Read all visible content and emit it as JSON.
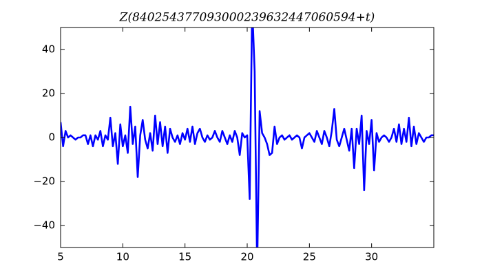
{
  "chart_data": {
    "type": "line",
    "title": "Z(840254377093000239632447060594+t)",
    "x": [
      5.0,
      5.2,
      5.4,
      5.6,
      5.8,
      6.0,
      6.2,
      6.4,
      6.6,
      6.8,
      7.0,
      7.2,
      7.4,
      7.6,
      7.8,
      8.0,
      8.2,
      8.4,
      8.6,
      8.8,
      9.0,
      9.2,
      9.4,
      9.6,
      9.8,
      10.0,
      10.2,
      10.4,
      10.6,
      10.8,
      11.0,
      11.2,
      11.4,
      11.6,
      11.8,
      12.0,
      12.2,
      12.4,
      12.6,
      12.8,
      13.0,
      13.2,
      13.4,
      13.6,
      13.8,
      14.0,
      14.2,
      14.4,
      14.6,
      14.8,
      15.0,
      15.2,
      15.4,
      15.6,
      15.8,
      16.0,
      16.2,
      16.4,
      16.6,
      16.8,
      17.0,
      17.2,
      17.4,
      17.6,
      17.8,
      18.0,
      18.2,
      18.4,
      18.6,
      18.8,
      19.0,
      19.2,
      19.4,
      19.6,
      19.8,
      20.0,
      20.2,
      20.4,
      20.6,
      20.8,
      21.0,
      21.2,
      21.4,
      21.6,
      21.8,
      22.0,
      22.2,
      22.4,
      22.6,
      22.8,
      23.0,
      23.2,
      23.4,
      23.6,
      23.8,
      24.0,
      24.2,
      24.4,
      24.6,
      24.8,
      25.0,
      25.2,
      25.4,
      25.6,
      25.8,
      26.0,
      26.2,
      26.4,
      26.6,
      26.8,
      27.0,
      27.2,
      27.4,
      27.6,
      27.8,
      28.0,
      28.2,
      28.4,
      28.6,
      28.8,
      29.0,
      29.2,
      29.4,
      29.6,
      29.8,
      30.0,
      30.2,
      30.4,
      30.6,
      30.8,
      31.0,
      31.2,
      31.4,
      31.6,
      31.8,
      32.0,
      32.2,
      32.4,
      32.6,
      32.8,
      33.0,
      33.2,
      33.4,
      33.6,
      33.8,
      34.0,
      34.2,
      34.4,
      34.6,
      34.8,
      35.0
    ],
    "values": [
      7,
      -4,
      3,
      0,
      1,
      0,
      -1,
      0,
      0,
      1,
      1,
      -3,
      1,
      -4,
      1,
      -1,
      3,
      -4,
      1,
      -1,
      9,
      -4,
      2,
      -12,
      6,
      -4,
      1,
      -7,
      14,
      -3,
      5,
      -18,
      1,
      8,
      -1,
      -5,
      2,
      -6,
      10,
      -3,
      7,
      -4,
      5,
      -7,
      4,
      0,
      -2,
      1,
      -3,
      2,
      -1,
      4,
      -2,
      5,
      -3,
      2,
      4,
      0,
      -2,
      1,
      -1,
      0,
      3,
      0,
      -2,
      3,
      0,
      -3,
      1,
      -2,
      3,
      0,
      -8,
      2,
      0,
      1,
      -28,
      60,
      30,
      -60,
      12,
      2,
      0,
      -3,
      -8,
      -7,
      5,
      -3,
      0,
      1,
      -1,
      0,
      1,
      -1,
      0,
      1,
      0,
      -5,
      0,
      1,
      2,
      0,
      -2,
      3,
      0,
      -3,
      3,
      0,
      -4,
      3,
      13,
      -1,
      -4,
      0,
      4,
      -1,
      -6,
      4,
      -14,
      4,
      -3,
      10,
      -24,
      3,
      -3,
      8,
      -15,
      2,
      -2,
      0,
      1,
      0,
      -2,
      0,
      4,
      -2,
      6,
      -3,
      4,
      -2,
      9,
      -4,
      5,
      -3,
      2,
      0,
      -2,
      0,
      0,
      1,
      1
    ],
    "color": "#0000ff",
    "xlim": [
      5,
      35
    ],
    "xticks": [
      5,
      10,
      15,
      20,
      25,
      30
    ],
    "ylim": [
      -50,
      50
    ],
    "yticks": [
      {
        "value": -40,
        "label": "−40"
      },
      {
        "value": -20,
        "label": "−20"
      },
      0,
      20,
      40
    ]
  }
}
